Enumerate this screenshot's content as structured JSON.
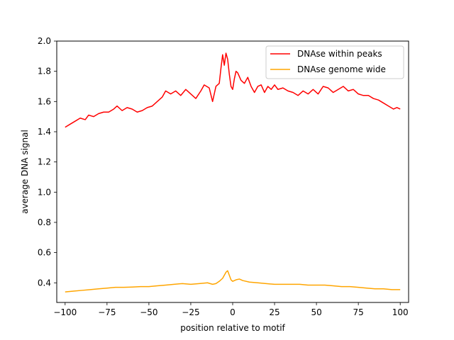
{
  "chart_data": {
    "type": "line",
    "title": "",
    "xlabel": "position relative to motif",
    "ylabel": "average DNA signal",
    "xlim": [
      -105,
      105
    ],
    "ylim": [
      0.27,
      2.0
    ],
    "xticks": [
      -100,
      -75,
      -50,
      -25,
      0,
      25,
      50,
      75,
      100
    ],
    "xtick_labels": [
      "−100",
      "−75",
      "−50",
      "−25",
      "0",
      "25",
      "50",
      "75",
      "100"
    ],
    "yticks": [
      0.4,
      0.6,
      0.8,
      1.0,
      1.2,
      1.4,
      1.6,
      1.8,
      2.0
    ],
    "ytick_labels": [
      "0.4",
      "0.6",
      "0.8",
      "1.0",
      "1.2",
      "1.4",
      "1.6",
      "1.8",
      "2.0"
    ],
    "grid": false,
    "legend_position": "top-right",
    "series": [
      {
        "name": "DNAse within peaks",
        "color": "#ff0000",
        "points": [
          [
            -100,
            1.43
          ],
          [
            -97,
            1.45
          ],
          [
            -94,
            1.47
          ],
          [
            -91,
            1.49
          ],
          [
            -88,
            1.48
          ],
          [
            -86,
            1.51
          ],
          [
            -83,
            1.5
          ],
          [
            -80,
            1.52
          ],
          [
            -77,
            1.53
          ],
          [
            -74,
            1.53
          ],
          [
            -71,
            1.55
          ],
          [
            -69,
            1.57
          ],
          [
            -66,
            1.54
          ],
          [
            -63,
            1.56
          ],
          [
            -60,
            1.55
          ],
          [
            -57,
            1.53
          ],
          [
            -54,
            1.54
          ],
          [
            -51,
            1.56
          ],
          [
            -48,
            1.57
          ],
          [
            -45,
            1.6
          ],
          [
            -42,
            1.63
          ],
          [
            -40,
            1.67
          ],
          [
            -37,
            1.65
          ],
          [
            -34,
            1.67
          ],
          [
            -31,
            1.64
          ],
          [
            -28,
            1.68
          ],
          [
            -25,
            1.65
          ],
          [
            -22,
            1.62
          ],
          [
            -19,
            1.67
          ],
          [
            -17,
            1.71
          ],
          [
            -14,
            1.69
          ],
          [
            -12,
            1.6
          ],
          [
            -10,
            1.7
          ],
          [
            -8,
            1.72
          ],
          [
            -7,
            1.82
          ],
          [
            -6,
            1.91
          ],
          [
            -5,
            1.84
          ],
          [
            -4,
            1.92
          ],
          [
            -3,
            1.88
          ],
          [
            -2,
            1.78
          ],
          [
            -1,
            1.7
          ],
          [
            0,
            1.68
          ],
          [
            1,
            1.75
          ],
          [
            2,
            1.8
          ],
          [
            3,
            1.79
          ],
          [
            5,
            1.74
          ],
          [
            7,
            1.72
          ],
          [
            9,
            1.76
          ],
          [
            11,
            1.7
          ],
          [
            13,
            1.66
          ],
          [
            15,
            1.7
          ],
          [
            17,
            1.71
          ],
          [
            19,
            1.66
          ],
          [
            21,
            1.7
          ],
          [
            23,
            1.68
          ],
          [
            25,
            1.71
          ],
          [
            27,
            1.68
          ],
          [
            30,
            1.69
          ],
          [
            33,
            1.67
          ],
          [
            36,
            1.66
          ],
          [
            39,
            1.64
          ],
          [
            42,
            1.67
          ],
          [
            45,
            1.65
          ],
          [
            48,
            1.68
          ],
          [
            51,
            1.65
          ],
          [
            54,
            1.7
          ],
          [
            57,
            1.69
          ],
          [
            60,
            1.66
          ],
          [
            63,
            1.68
          ],
          [
            66,
            1.7
          ],
          [
            69,
            1.67
          ],
          [
            72,
            1.68
          ],
          [
            75,
            1.65
          ],
          [
            78,
            1.64
          ],
          [
            81,
            1.64
          ],
          [
            84,
            1.62
          ],
          [
            87,
            1.61
          ],
          [
            90,
            1.59
          ],
          [
            93,
            1.57
          ],
          [
            96,
            1.55
          ],
          [
            98,
            1.56
          ],
          [
            100,
            1.55
          ]
        ]
      },
      {
        "name": "DNAse genome wide",
        "color": "#ffa500",
        "points": [
          [
            -100,
            0.34
          ],
          [
            -95,
            0.345
          ],
          [
            -90,
            0.35
          ],
          [
            -85,
            0.355
          ],
          [
            -80,
            0.36
          ],
          [
            -75,
            0.365
          ],
          [
            -70,
            0.37
          ],
          [
            -65,
            0.37
          ],
          [
            -60,
            0.372
          ],
          [
            -55,
            0.375
          ],
          [
            -50,
            0.375
          ],
          [
            -45,
            0.38
          ],
          [
            -40,
            0.385
          ],
          [
            -35,
            0.39
          ],
          [
            -30,
            0.395
          ],
          [
            -25,
            0.39
          ],
          [
            -20,
            0.395
          ],
          [
            -15,
            0.4
          ],
          [
            -12,
            0.39
          ],
          [
            -10,
            0.395
          ],
          [
            -8,
            0.41
          ],
          [
            -6,
            0.43
          ],
          [
            -5,
            0.45
          ],
          [
            -4,
            0.47
          ],
          [
            -3,
            0.48
          ],
          [
            -2,
            0.45
          ],
          [
            -1,
            0.42
          ],
          [
            0,
            0.41
          ],
          [
            2,
            0.42
          ],
          [
            4,
            0.425
          ],
          [
            6,
            0.415
          ],
          [
            10,
            0.405
          ],
          [
            15,
            0.4
          ],
          [
            20,
            0.395
          ],
          [
            25,
            0.39
          ],
          [
            30,
            0.39
          ],
          [
            35,
            0.39
          ],
          [
            40,
            0.39
          ],
          [
            45,
            0.385
          ],
          [
            50,
            0.385
          ],
          [
            55,
            0.385
          ],
          [
            60,
            0.38
          ],
          [
            65,
            0.375
          ],
          [
            70,
            0.375
          ],
          [
            75,
            0.37
          ],
          [
            80,
            0.365
          ],
          [
            85,
            0.36
          ],
          [
            90,
            0.36
          ],
          [
            95,
            0.355
          ],
          [
            100,
            0.355
          ]
        ]
      }
    ]
  }
}
